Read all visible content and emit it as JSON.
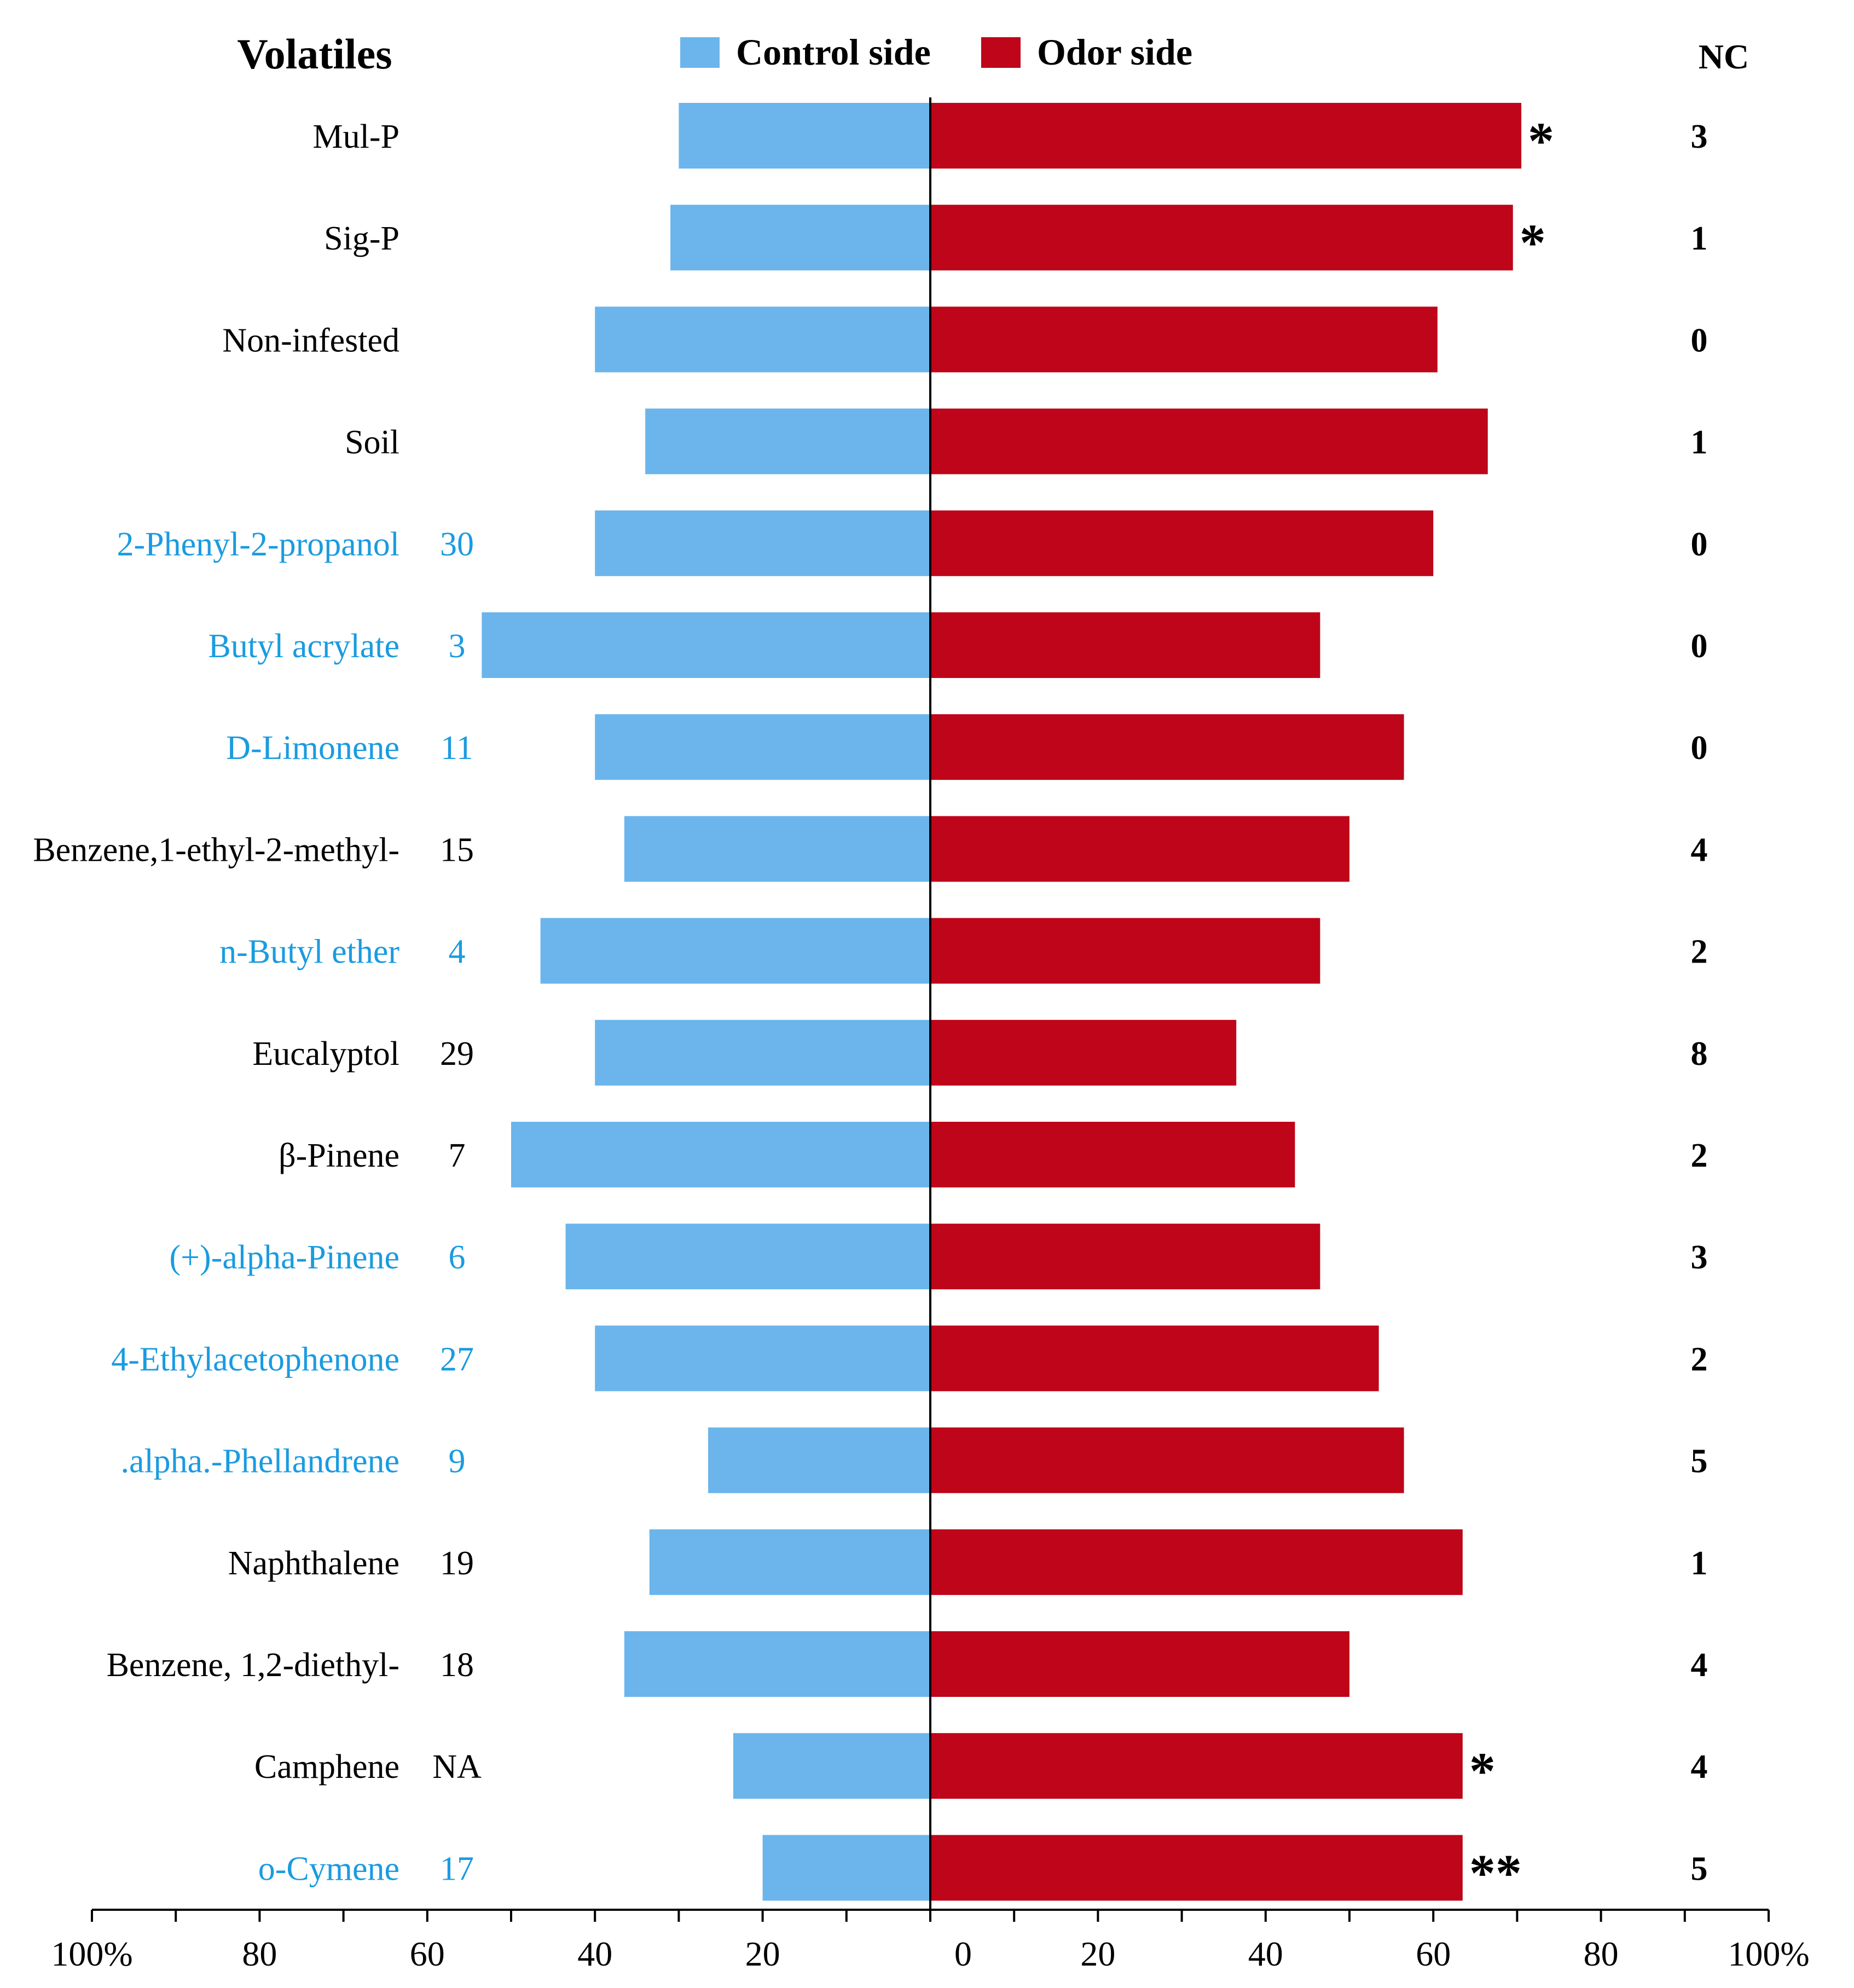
{
  "chart_data": {
    "type": "bar",
    "orientation": "horizontal-diverging",
    "header_left": "Volatiles",
    "header_right": "NC",
    "legend": [
      {
        "label": "Control side",
        "color": "#6bb5ec"
      },
      {
        "label": "Odor side",
        "color": "#be0519"
      }
    ],
    "legend_placement": "top-center",
    "rows": [
      {
        "label": "Mul-P",
        "num": "",
        "label_color": "#000000",
        "control": 30,
        "odor": 70.5,
        "sig": "*",
        "nc": "3"
      },
      {
        "label": "Sig-P",
        "num": "",
        "label_color": "#000000",
        "control": 31,
        "odor": 69.5,
        "sig": "*",
        "nc": "1"
      },
      {
        "label": "Non-infested",
        "num": "",
        "label_color": "#000000",
        "control": 40,
        "odor": 60.5,
        "sig": "",
        "nc": "0"
      },
      {
        "label": "Soil",
        "num": "",
        "label_color": "#000000",
        "control": 34,
        "odor": 66.5,
        "sig": "",
        "nc": "1"
      },
      {
        "label": "2-Phenyl-2-propanol",
        "num": "30",
        "label_color": "#1a9be0",
        "control": 40,
        "odor": 60,
        "sig": "",
        "nc": "0"
      },
      {
        "label": "Butyl acrylate",
        "num": "3",
        "label_color": "#1a9be0",
        "control": 53.5,
        "odor": 46.5,
        "sig": "",
        "nc": "0"
      },
      {
        "label": "D-Limonene",
        "num": "11",
        "label_color": "#1a9be0",
        "control": 40,
        "odor": 56.5,
        "sig": "",
        "nc": "0"
      },
      {
        "label": "Benzene,1-ethyl-2-methyl-",
        "num": "15",
        "label_color": "#000000",
        "control": 36.5,
        "odor": 50,
        "sig": "",
        "nc": "4"
      },
      {
        "label": "n-Butyl ether",
        "num": "4",
        "label_color": "#1a9be0",
        "control": 46.5,
        "odor": 46.5,
        "sig": "",
        "nc": "2"
      },
      {
        "label": "Eucalyptol",
        "num": "29",
        "label_color": "#000000",
        "control": 40,
        "odor": 36.5,
        "sig": "",
        "nc": "8"
      },
      {
        "label": "β-Pinene",
        "num": "7",
        "label_color": "#000000",
        "control": 50,
        "odor": 43.5,
        "sig": "",
        "nc": "2"
      },
      {
        "label": "(+)-alpha-Pinene",
        "num": "6",
        "label_color": "#1a9be0",
        "control": 43.5,
        "odor": 46.5,
        "sig": "",
        "nc": "3"
      },
      {
        "label": "4-Ethylacetophenone",
        "num": "27",
        "label_color": "#1a9be0",
        "control": 40,
        "odor": 53.5,
        "sig": "",
        "nc": "2"
      },
      {
        "label": ".alpha.-Phellandrene",
        "num": "9",
        "label_color": "#1a9be0",
        "control": 26.5,
        "odor": 56.5,
        "sig": "",
        "nc": "5"
      },
      {
        "label": "Naphthalene",
        "num": "19",
        "label_color": "#000000",
        "control": 33.5,
        "odor": 63.5,
        "sig": "",
        "nc": "1"
      },
      {
        "label": "Benzene, 1,2-diethyl-",
        "num": "18",
        "label_color": "#000000",
        "control": 36.5,
        "odor": 50,
        "sig": "",
        "nc": "4"
      },
      {
        "label": "Camphene",
        "num": "NA",
        "label_color": "#000000",
        "control": 23.5,
        "odor": 63.5,
        "sig": "*",
        "nc": "4"
      },
      {
        "label": "o-Cymene",
        "num": "17",
        "label_color": "#1a9be0",
        "control": 20,
        "odor": 63.5,
        "sig": "**",
        "nc": "5"
      }
    ],
    "axis": {
      "range": [
        -100,
        100
      ],
      "ticks": [
        -100,
        -80,
        -60,
        -40,
        -20,
        0,
        20,
        40,
        60,
        80,
        100
      ],
      "tick_labels": [
        "100%",
        "80",
        "60",
        "40",
        "20",
        "0",
        "20",
        "40",
        "60",
        "80",
        "100%"
      ]
    },
    "grid": false
  }
}
